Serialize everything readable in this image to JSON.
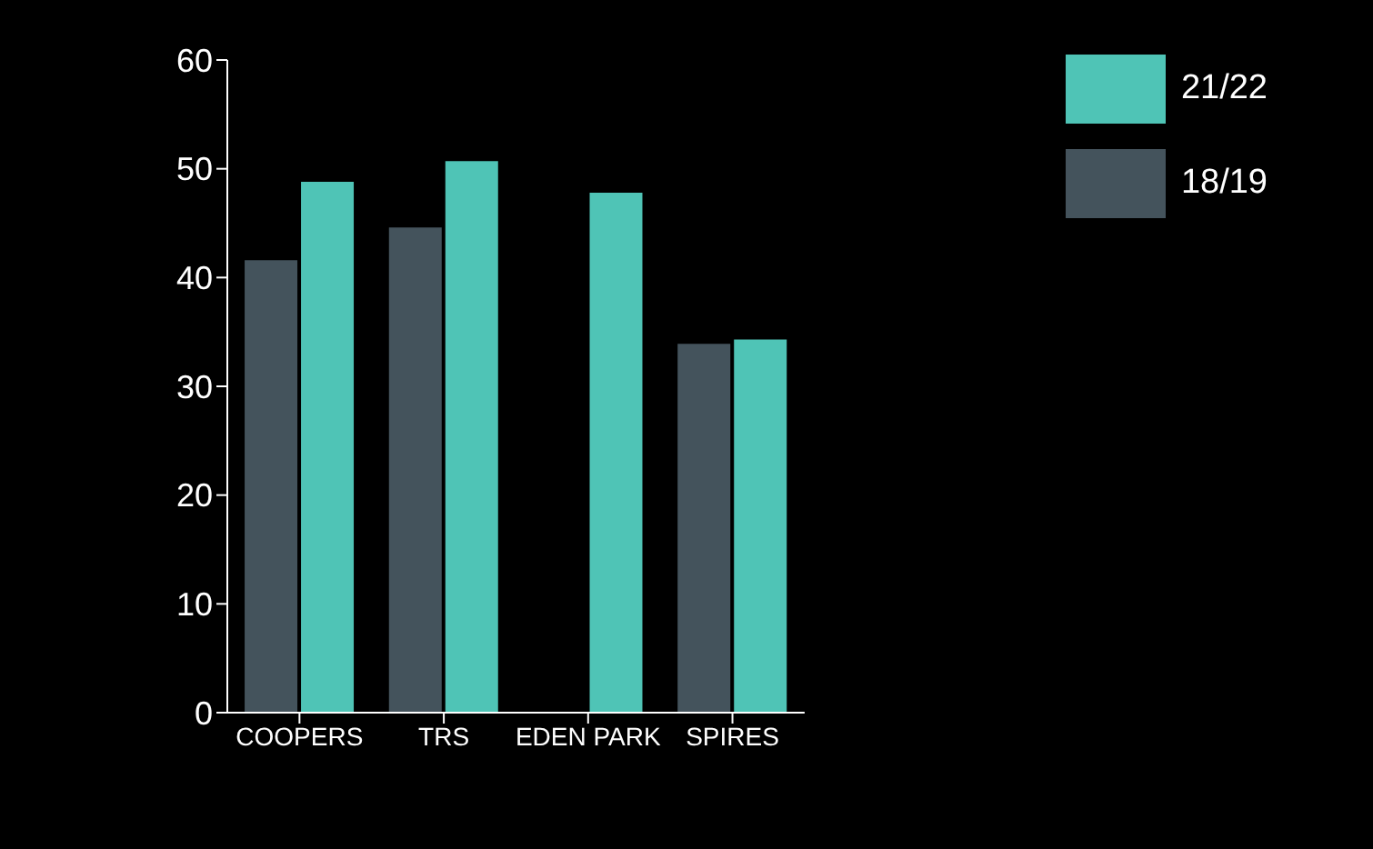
{
  "chart_data": {
    "type": "bar",
    "categories": [
      "COOPERS",
      "TRS",
      "EDEN PARK",
      "SPIRES"
    ],
    "series": [
      {
        "name": "18/19",
        "color": "#44535c",
        "values": [
          41.6,
          44.6,
          null,
          33.9
        ]
      },
      {
        "name": "21/22",
        "color": "#4fc4b6",
        "values": [
          48.8,
          50.7,
          47.8,
          34.3
        ]
      }
    ],
    "ylim": [
      0,
      60
    ],
    "yticks": [
      0,
      10,
      20,
      30,
      40,
      50,
      60
    ],
    "grid": false,
    "legend": "top right"
  }
}
